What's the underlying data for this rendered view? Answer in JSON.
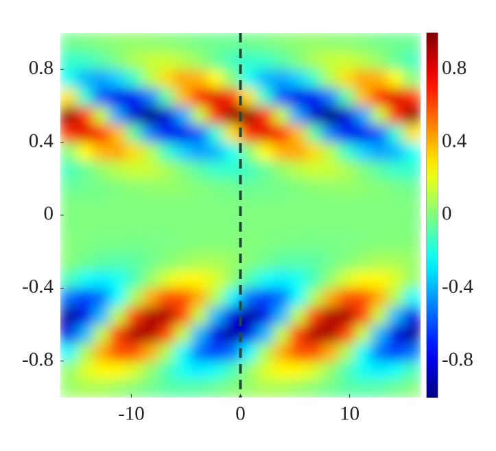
{
  "chart_data": {
    "type": "heatmap",
    "colormap": "jet",
    "clim": [
      -1,
      1
    ],
    "xlim": [
      -16.5,
      16.5
    ],
    "ylim": [
      -1,
      1
    ],
    "xticks": [
      -10,
      0,
      10
    ],
    "yticks": [
      -0.8,
      -0.4,
      0,
      0.4,
      0.8
    ],
    "colorbar_ticks": [
      -0.8,
      -0.4,
      0,
      0.4,
      0.8
    ],
    "vlines": [
      {
        "x": 0,
        "color": "#1f4a3a",
        "style": "dashed"
      }
    ],
    "x": [
      -15.75,
      -14.25,
      -12.75,
      -11.25,
      -9.75,
      -8.25,
      -6.75,
      -5.25,
      -3.75,
      -2.25,
      -0.75,
      0.75,
      2.25,
      3.75,
      5.25,
      6.75,
      8.25,
      9.75,
      11.25,
      12.75,
      14.25,
      15.75
    ],
    "y": [
      -0.95,
      -0.85,
      -0.75,
      -0.65,
      -0.55,
      -0.45,
      -0.35,
      -0.25,
      -0.15,
      -0.05,
      0.05,
      0.15,
      0.25,
      0.35,
      0.45,
      0.55,
      0.65,
      0.75,
      0.85,
      0.95
    ],
    "values": [
      [
        0.05,
        0.08,
        0.08,
        0.05,
        0.01,
        -0.03,
        -0.07,
        -0.08,
        -0.07,
        -0.03,
        0.01,
        0.05,
        0.08,
        0.08,
        0.05,
        0.01,
        -0.03,
        -0.07,
        -0.08,
        -0.07,
        -0.03,
        0.01
      ],
      [
        0.04,
        0.18,
        0.26,
        0.26,
        0.18,
        0.04,
        -0.11,
        -0.23,
        -0.28,
        -0.23,
        -0.11,
        0.04,
        0.18,
        0.26,
        0.26,
        0.18,
        0.04,
        -0.11,
        -0.23,
        -0.28,
        -0.23,
        -0.11
      ],
      [
        -0.26,
        0.09,
        0.41,
        0.6,
        0.6,
        0.41,
        0.09,
        -0.26,
        -0.53,
        -0.63,
        -0.53,
        -0.26,
        0.09,
        0.41,
        0.6,
        0.6,
        0.41,
        0.09,
        -0.26,
        -0.53,
        -0.63,
        -0.53
      ],
      [
        -0.8,
        -0.39,
        0.13,
        0.62,
        0.91,
        0.91,
        0.62,
        0.13,
        -0.39,
        -0.8,
        -0.95,
        -0.8,
        -0.39,
        0.13,
        0.62,
        0.91,
        0.91,
        0.62,
        0.13,
        -0.39,
        -0.8,
        -0.95
      ],
      [
        -0.95,
        -0.8,
        -0.39,
        0.13,
        0.62,
        0.91,
        0.91,
        0.62,
        0.13,
        -0.39,
        -0.8,
        -0.95,
        -0.8,
        -0.39,
        0.13,
        0.62,
        0.91,
        0.91,
        0.62,
        0.13,
        -0.39,
        -0.8
      ],
      [
        -0.53,
        -0.63,
        -0.53,
        -0.26,
        0.09,
        0.41,
        0.6,
        0.6,
        0.41,
        0.09,
        -0.26,
        -0.53,
        -0.63,
        -0.53,
        -0.26,
        0.09,
        0.41,
        0.6,
        0.6,
        0.41,
        0.09,
        -0.26
      ],
      [
        -0.11,
        -0.23,
        -0.28,
        -0.23,
        -0.11,
        0.04,
        0.18,
        0.26,
        0.26,
        0.18,
        0.04,
        -0.11,
        -0.23,
        -0.28,
        -0.23,
        -0.11,
        0.04,
        0.18,
        0.26,
        0.26,
        0.18,
        0.04
      ],
      [
        0.01,
        -0.03,
        -0.07,
        -0.08,
        -0.07,
        -0.03,
        0.01,
        0.05,
        0.08,
        0.08,
        0.05,
        0.01,
        -0.03,
        -0.07,
        -0.08,
        -0.07,
        -0.03,
        0.01,
        0.05,
        0.08,
        0.08,
        0.05
      ],
      [
        0.01,
        0,
        -0.01,
        -0.01,
        -0.02,
        -0.01,
        -0.01,
        0,
        0.01,
        0.01,
        0.01,
        0.01,
        0,
        -0.01,
        -0.01,
        -0.02,
        -0.01,
        -0.01,
        0,
        0.01,
        0.01,
        0.01
      ],
      [
        0,
        0,
        0,
        0,
        0,
        0,
        0,
        0,
        0,
        0,
        0,
        0,
        0,
        0,
        0,
        0,
        0,
        0,
        0,
        0,
        0,
        0
      ],
      [
        0,
        0,
        0,
        0,
        0,
        0,
        0,
        0,
        0,
        0,
        0,
        0,
        0,
        0,
        0,
        0,
        0,
        0,
        0,
        0,
        0,
        0
      ],
      [
        -0.04,
        -0.03,
        -0.02,
        0,
        0.02,
        0.03,
        0.04,
        0.03,
        0.01,
        -0.01,
        -0.03,
        -0.04,
        -0.03,
        -0.02,
        0,
        0.02,
        0.03,
        0.04,
        0.03,
        0.01,
        -0.01,
        -0.03
      ],
      [
        -0.12,
        -0.05,
        0.04,
        0.11,
        0.15,
        0.14,
        0.09,
        0,
        -0.08,
        -0.14,
        -0.15,
        -0.12,
        -0.05,
        0.04,
        0.11,
        0.15,
        0.14,
        0.09,
        0,
        -0.08,
        -0.14,
        -0.15
      ],
      [
        0.01,
        0.25,
        0.4,
        0.43,
        0.32,
        0.11,
        -0.14,
        -0.34,
        -0.43,
        -0.39,
        -0.23,
        0.01,
        0.25,
        0.4,
        0.43,
        0.32,
        0.11,
        -0.14,
        -0.34,
        -0.43,
        -0.39,
        -0.23
      ],
      [
        0.66,
        0.81,
        0.71,
        0.38,
        -0.07,
        -0.5,
        -0.77,
        -0.79,
        -0.57,
        -0.16,
        0.3,
        0.66,
        0.81,
        0.71,
        0.38,
        -0.07,
        -0.5,
        -0.77,
        -0.79,
        -0.57,
        -0.16,
        0.3
      ],
      [
        0.96,
        0.65,
        0.14,
        -0.42,
        -0.84,
        -1,
        -0.84,
        -0.42,
        0.14,
        0.65,
        0.96,
        0.96,
        0.65,
        0.14,
        -0.42,
        -0.84,
        -1,
        -0.84,
        -0.42,
        0.14,
        0.65,
        0.96
      ],
      [
        0.3,
        -0.16,
        -0.57,
        -0.79,
        -0.77,
        -0.5,
        -0.07,
        0.38,
        0.71,
        0.81,
        0.66,
        0.3,
        -0.16,
        -0.57,
        -0.79,
        -0.77,
        -0.5,
        -0.07,
        0.38,
        0.71,
        0.81,
        0.66
      ],
      [
        -0.23,
        -0.39,
        -0.43,
        -0.34,
        -0.14,
        0.11,
        0.32,
        0.43,
        0.4,
        0.25,
        0.01,
        -0.23,
        -0.39,
        -0.43,
        -0.34,
        -0.14,
        0.11,
        0.32,
        0.43,
        0.4,
        0.25,
        0.01
      ],
      [
        -0.15,
        -0.14,
        -0.08,
        0,
        0.09,
        0.14,
        0.15,
        0.11,
        0.04,
        -0.05,
        -0.12,
        -0.15,
        -0.14,
        -0.08,
        0,
        0.09,
        0.14,
        0.15,
        0.11,
        0.04,
        -0.05,
        -0.12
      ],
      [
        -0.03,
        -0.01,
        0.01,
        0.03,
        0.04,
        0.03,
        0.02,
        0,
        -0.02,
        -0.03,
        -0.04,
        -0.03,
        -0.01,
        0.01,
        0.03,
        0.04,
        0.03,
        0.02,
        0,
        -0.02,
        -0.03,
        -0.04
      ]
    ]
  }
}
